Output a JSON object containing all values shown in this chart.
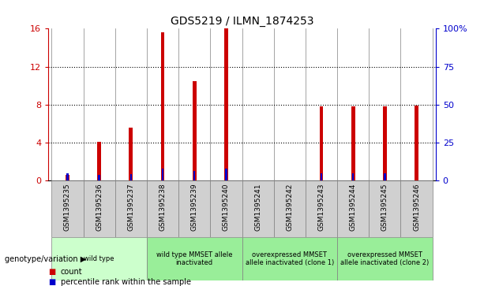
{
  "title": "GDS5219 / ILMN_1874253",
  "samples": [
    "GSM1395235",
    "GSM1395236",
    "GSM1395237",
    "GSM1395238",
    "GSM1395239",
    "GSM1395240",
    "GSM1395241",
    "GSM1395242",
    "GSM1395243",
    "GSM1395244",
    "GSM1395245",
    "GSM1395246"
  ],
  "counts": [
    0.6,
    4.1,
    5.6,
    15.6,
    10.5,
    16.0,
    0.0,
    0.0,
    7.8,
    7.8,
    7.8,
    7.9
  ],
  "percentiles": [
    5.0,
    3.8,
    4.2,
    7.8,
    6.2,
    7.9,
    0.0,
    0.0,
    4.5,
    4.7,
    4.7,
    0.0
  ],
  "count_color": "#cc0000",
  "percentile_color": "#0000cc",
  "ylim_left": [
    0,
    16
  ],
  "ylim_right": [
    0,
    100
  ],
  "yticks_left": [
    0,
    4,
    8,
    12,
    16
  ],
  "yticks_right": [
    0,
    25,
    50,
    75,
    100
  ],
  "ytick_labels_right": [
    "0",
    "25",
    "50",
    "75",
    "100%"
  ],
  "group_defs": [
    {
      "cols": [
        0,
        1,
        2
      ],
      "label": "wild type",
      "color": "#ccffcc"
    },
    {
      "cols": [
        3,
        4,
        5
      ],
      "label": "wild type MMSET allele\ninactivated",
      "color": "#99ee99"
    },
    {
      "cols": [
        6,
        7,
        8
      ],
      "label": "overexpressed MMSET\nallele inactivated (clone 1)",
      "color": "#99ee99"
    },
    {
      "cols": [
        9,
        10,
        11
      ],
      "label": "overexpressed MMSET\nallele inactivated (clone 2)",
      "color": "#99ee99"
    }
  ],
  "genotype_label": "genotype/variation",
  "legend_count": "count",
  "legend_percentile": "percentile rank within the sample",
  "bar_width": 0.12,
  "pct_bar_width": 0.06,
  "plot_bg": "#ffffff",
  "gsm_row_bg": "#d0d0d0",
  "grid_color": "#000000",
  "grid_linestyle": ":"
}
